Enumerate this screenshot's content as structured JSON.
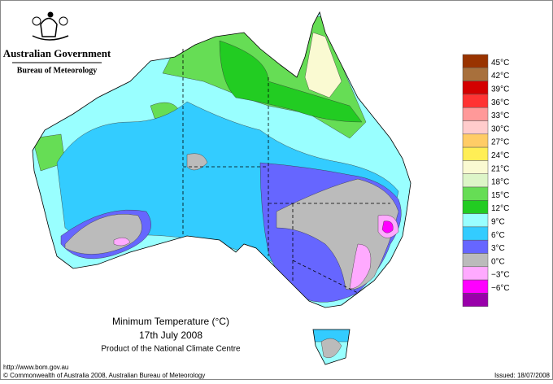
{
  "header": {
    "government": "Australian Government",
    "agency": "Bureau of Meteorology"
  },
  "map": {
    "title": "Minimum Temperature (°C)",
    "date": "17th July 2008",
    "product": "Product of the National Climate Centre"
  },
  "legend": {
    "labels": [
      "45°C",
      "42°C",
      "39°C",
      "36°C",
      "33°C",
      "30°C",
      "27°C",
      "24°C",
      "21°C",
      "18°C",
      "15°C",
      "12°C",
      "9°C",
      "6°C",
      "3°C",
      "0°C",
      "−3°C",
      "−6°C"
    ],
    "colors": [
      "#993300",
      "#a8703c",
      "#d40000",
      "#ff3333",
      "#ff9999",
      "#ffcccc",
      "#ffcc66",
      "#ffee55",
      "#fafad2",
      "#ddf5c8",
      "#66dd55",
      "#22cc22",
      "#99ffff",
      "#33ccff",
      "#6666ff",
      "#bbbbbb",
      "#ffaaff",
      "#ff00ff",
      "#9900aa"
    ]
  },
  "footer": {
    "url": "http://www.bom.gov.au",
    "copyright": "© Commonwealth of Australia 2008, Australian Bureau of Meteorology",
    "issued": "Issued: 18/07/2008"
  }
}
